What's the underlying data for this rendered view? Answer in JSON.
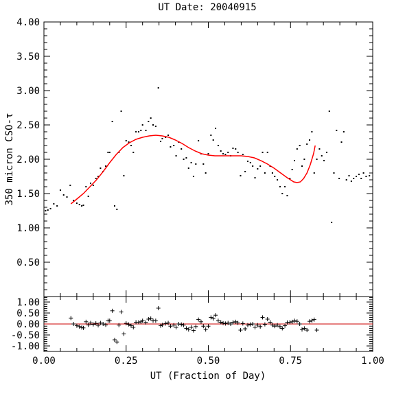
{
  "chart_data": [
    {
      "type": "scatter",
      "title": "UT Date: 20040915",
      "ylabel": "350 micron CSO-τ",
      "xlabel": "",
      "xlim": [
        0.0,
        1.0
      ],
      "ylim": [
        0.0,
        4.0
      ],
      "xticks": [
        "0.00",
        "0.25",
        "0.50",
        "0.75",
        "1.00"
      ],
      "yticks": [
        "0.50",
        "1.00",
        "1.50",
        "2.00",
        "2.50",
        "3.00",
        "3.50",
        "4.00"
      ],
      "series": [
        {
          "marker": "dot",
          "color": "#000000",
          "x": [
            0.005,
            0.012,
            0.02,
            0.03,
            0.04,
            0.05,
            0.06,
            0.07,
            0.08,
            0.09,
            0.1,
            0.108,
            0.115,
            0.12,
            0.128,
            0.135,
            0.142,
            0.15,
            0.158,
            0.165,
            0.172,
            0.18,
            0.188,
            0.195,
            0.2,
            0.208,
            0.215,
            0.222,
            0.228,
            0.235,
            0.243,
            0.25,
            0.258,
            0.265,
            0.272,
            0.28,
            0.288,
            0.295,
            0.3,
            0.31,
            0.318,
            0.325,
            0.332,
            0.34,
            0.348,
            0.355,
            0.36,
            0.37,
            0.378,
            0.385,
            0.395,
            0.402,
            0.41,
            0.418,
            0.425,
            0.433,
            0.44,
            0.448,
            0.455,
            0.462,
            0.47,
            0.478,
            0.485,
            0.492,
            0.5,
            0.508,
            0.515,
            0.522,
            0.53,
            0.538,
            0.545,
            0.552,
            0.56,
            0.568,
            0.575,
            0.583,
            0.59,
            0.598,
            0.605,
            0.612,
            0.62,
            0.628,
            0.635,
            0.642,
            0.65,
            0.658,
            0.665,
            0.672,
            0.68,
            0.688,
            0.695,
            0.702,
            0.71,
            0.718,
            0.725,
            0.733,
            0.74,
            0.748,
            0.755,
            0.762,
            0.77,
            0.778,
            0.785,
            0.792,
            0.8,
            0.808,
            0.815,
            0.822,
            0.83,
            0.838,
            0.845,
            0.852,
            0.86,
            0.868,
            0.875,
            0.882,
            0.89,
            0.898,
            0.905,
            0.912,
            0.92,
            0.928,
            0.935,
            0.942,
            0.95,
            0.958,
            0.965,
            0.972,
            0.98,
            0.99
          ],
          "y": [
            1.25,
            1.26,
            1.28,
            1.35,
            1.32,
            1.55,
            1.48,
            1.45,
            1.62,
            1.4,
            1.36,
            1.34,
            1.32,
            1.33,
            1.6,
            1.46,
            1.65,
            1.62,
            1.72,
            1.75,
            1.87,
            1.82,
            1.9,
            2.1,
            2.1,
            2.55,
            1.32,
            1.27,
            2.1,
            2.7,
            1.76,
            2.27,
            2.25,
            2.2,
            2.1,
            2.4,
            2.4,
            2.42,
            2.5,
            2.42,
            2.55,
            2.6,
            2.5,
            2.48,
            3.04,
            2.26,
            2.3,
            2.32,
            2.35,
            2.18,
            2.2,
            2.05,
            2.25,
            2.15,
            2.0,
            2.02,
            1.87,
            1.95,
            1.75,
            1.93,
            2.27,
            2.08,
            1.93,
            1.8,
            2.08,
            2.35,
            2.28,
            2.45,
            2.2,
            2.12,
            2.08,
            2.07,
            2.1,
            2.05,
            2.16,
            2.15,
            2.1,
            1.76,
            2.07,
            1.82,
            1.97,
            1.95,
            1.9,
            1.73,
            1.86,
            1.9,
            2.1,
            1.8,
            2.1,
            1.9,
            1.8,
            1.75,
            1.7,
            1.6,
            1.5,
            1.6,
            1.47,
            1.72,
            1.85,
            1.98,
            2.15,
            2.2,
            1.9,
            2.0,
            2.22,
            2.28,
            2.4,
            1.8,
            2.0,
            2.15,
            2.05,
            1.98,
            2.1,
            2.7,
            1.08,
            1.8,
            2.42,
            1.72,
            2.25,
            2.4,
            1.7,
            1.76,
            1.68,
            1.72,
            1.75,
            1.78,
            1.72,
            1.8,
            1.75,
            1.76
          ]
        },
        {
          "name": "fit",
          "marker": "line",
          "color": "#ff0000",
          "x": [
            0.082,
            0.1,
            0.12,
            0.14,
            0.16,
            0.18,
            0.2,
            0.22,
            0.24,
            0.26,
            0.28,
            0.3,
            0.32,
            0.34,
            0.36,
            0.38,
            0.4,
            0.42,
            0.44,
            0.46,
            0.48,
            0.5,
            0.52,
            0.54,
            0.56,
            0.58,
            0.6,
            0.62,
            0.64,
            0.66,
            0.68,
            0.7,
            0.72,
            0.74,
            0.75,
            0.76,
            0.77,
            0.78,
            0.79,
            0.8,
            0.81,
            0.82,
            0.825
          ],
          "y": [
            1.35,
            1.42,
            1.5,
            1.6,
            1.7,
            1.82,
            1.95,
            2.07,
            2.17,
            2.24,
            2.29,
            2.32,
            2.34,
            2.35,
            2.34,
            2.32,
            2.28,
            2.23,
            2.17,
            2.12,
            2.08,
            2.06,
            2.05,
            2.05,
            2.05,
            2.05,
            2.05,
            2.04,
            2.02,
            1.98,
            1.93,
            1.87,
            1.8,
            1.73,
            1.7,
            1.67,
            1.66,
            1.67,
            1.72,
            1.8,
            1.92,
            2.08,
            2.2
          ]
        }
      ]
    },
    {
      "type": "scatter",
      "title": "",
      "xlabel": "UT (Fraction of Day)",
      "ylabel": "",
      "xlim": [
        0.0,
        1.0
      ],
      "ylim": [
        -1.25,
        1.25
      ],
      "xticks": [
        "0.00",
        "0.25",
        "0.50",
        "0.75",
        "1.00"
      ],
      "yticks": [
        "-1.00",
        "-0.50",
        "0.00",
        "0.50",
        "1.00"
      ],
      "reference_line": 0.0,
      "series": [
        {
          "marker": "plus",
          "color": "#000000",
          "x": [
            0.082,
            0.09,
            0.1,
            0.108,
            0.115,
            0.12,
            0.128,
            0.135,
            0.142,
            0.15,
            0.158,
            0.165,
            0.172,
            0.18,
            0.188,
            0.195,
            0.2,
            0.208,
            0.215,
            0.222,
            0.228,
            0.235,
            0.243,
            0.25,
            0.258,
            0.265,
            0.272,
            0.28,
            0.288,
            0.295,
            0.3,
            0.31,
            0.318,
            0.325,
            0.332,
            0.34,
            0.348,
            0.355,
            0.36,
            0.37,
            0.378,
            0.385,
            0.395,
            0.402,
            0.41,
            0.418,
            0.425,
            0.433,
            0.44,
            0.448,
            0.455,
            0.462,
            0.47,
            0.478,
            0.485,
            0.492,
            0.5,
            0.508,
            0.515,
            0.522,
            0.53,
            0.538,
            0.545,
            0.552,
            0.56,
            0.568,
            0.575,
            0.583,
            0.59,
            0.598,
            0.605,
            0.612,
            0.62,
            0.628,
            0.635,
            0.642,
            0.65,
            0.658,
            0.665,
            0.672,
            0.68,
            0.688,
            0.695,
            0.702,
            0.71,
            0.718,
            0.725,
            0.733,
            0.74,
            0.748,
            0.755,
            0.762,
            0.77,
            0.778,
            0.785,
            0.792,
            0.8,
            0.808,
            0.815,
            0.822,
            0.83
          ],
          "y": [
            0.27,
            0.0,
            -0.08,
            -0.12,
            -0.16,
            -0.18,
            0.1,
            -0.04,
            0.05,
            -0.02,
            0.03,
            -0.06,
            0.05,
            0.0,
            -0.04,
            0.15,
            0.15,
            0.6,
            -0.72,
            -0.82,
            -0.05,
            0.55,
            -0.45,
            0.03,
            -0.02,
            -0.08,
            -0.15,
            0.08,
            0.08,
            0.1,
            0.15,
            0.07,
            0.22,
            0.25,
            0.15,
            0.15,
            0.72,
            -0.08,
            -0.04,
            0.02,
            0.05,
            -0.1,
            -0.05,
            -0.15,
            0.0,
            -0.02,
            -0.05,
            -0.2,
            -0.25,
            -0.15,
            -0.3,
            -0.12,
            0.2,
            0.1,
            -0.1,
            -0.25,
            -0.1,
            0.3,
            0.25,
            0.4,
            0.15,
            0.08,
            0.04,
            0.02,
            0.05,
            0.0,
            0.08,
            0.1,
            0.05,
            -0.28,
            0.02,
            -0.22,
            -0.05,
            -0.02,
            0.0,
            -0.15,
            -0.05,
            -0.12,
            0.3,
            -0.02,
            0.22,
            0.08,
            -0.05,
            -0.1,
            -0.05,
            -0.12,
            -0.2,
            -0.08,
            0.07,
            0.08,
            0.1,
            0.15,
            0.12,
            0.0,
            -0.25,
            -0.2,
            -0.28,
            0.12,
            0.15,
            0.2,
            -0.28
          ]
        }
      ]
    }
  ]
}
